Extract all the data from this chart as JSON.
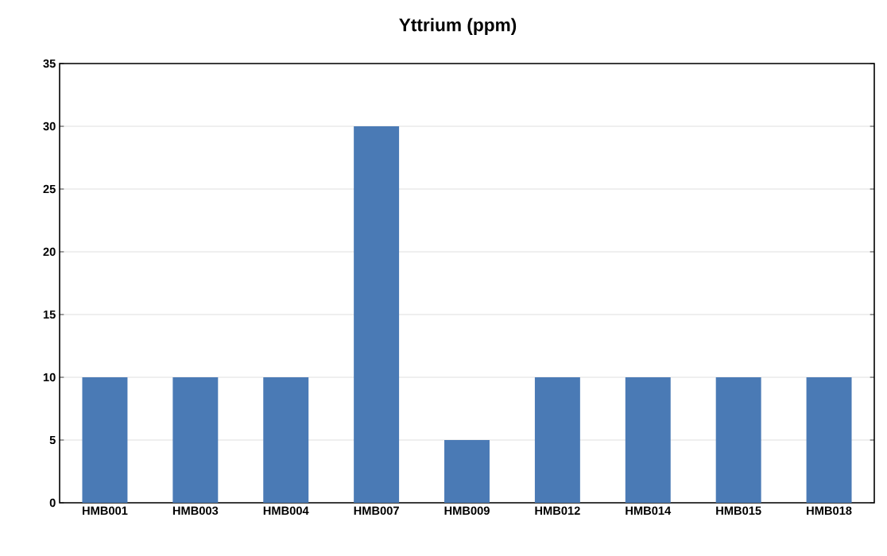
{
  "chart_data": {
    "type": "bar",
    "title": "Yttrium (ppm)",
    "categories": [
      "HMB001",
      "HMB003",
      "HMB004",
      "HMB007",
      "HMB009",
      "HMB012",
      "HMB014",
      "HMB015",
      "HMB018"
    ],
    "values": [
      10,
      10,
      10,
      30,
      5,
      10,
      10,
      10,
      10
    ],
    "color": "#4a7ab5",
    "ylim": [
      0,
      35
    ],
    "yticks": [
      0,
      5,
      10,
      15,
      20,
      25,
      30,
      35
    ],
    "grid": "y"
  }
}
